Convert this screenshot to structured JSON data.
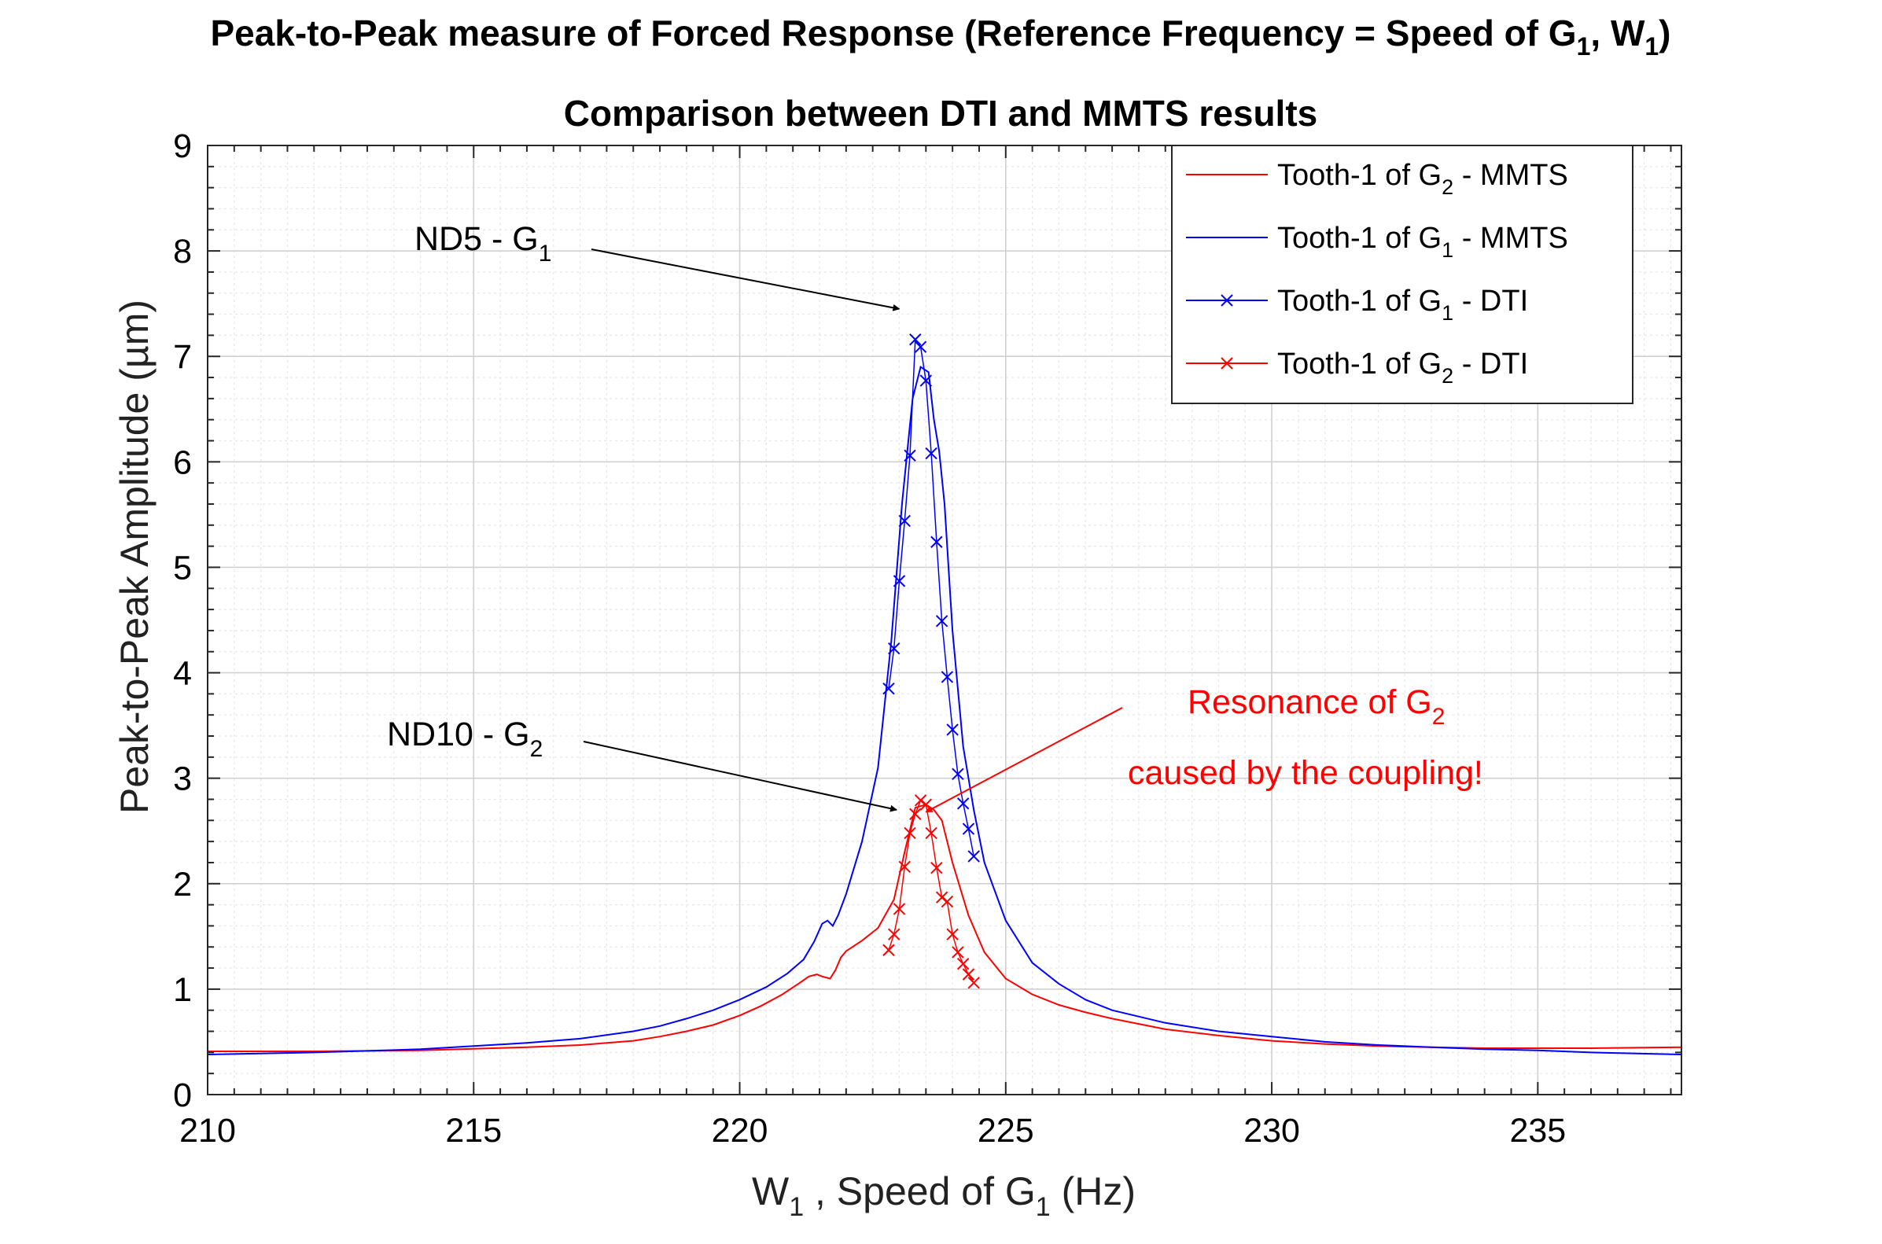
{
  "chart_data": {
    "type": "line",
    "title": {
      "line1_main": "Peak-to-Peak measure of Forced Response (Reference Frequency = Speed of G",
      "line1_sub1": "1",
      "line1_mid": ", W",
      "line1_sub2": "1",
      "line1_end": ")",
      "line2": "Comparison between DTI and MMTS results"
    },
    "xlabel": {
      "a": "W",
      "a_sub": "1",
      "b": " , Speed of G",
      "b_sub": "1",
      "c": " (Hz)"
    },
    "ylabel": "Peak-to-Peak Amplitude (µm)",
    "xlim": [
      210,
      237.7
    ],
    "ylim": [
      0,
      9
    ],
    "xticks": [
      210,
      215,
      220,
      225,
      230,
      235
    ],
    "yticks": [
      0,
      1,
      2,
      3,
      4,
      5,
      6,
      7,
      8,
      9
    ],
    "grid": true,
    "legend_position": "top-right",
    "series": [
      {
        "name": "Tooth-1 of G2 - MMTS",
        "legend": {
          "pre": "Tooth-1 of G",
          "sub": "2",
          "post": " - MMTS"
        },
        "color": "#ff0000",
        "marker": "none",
        "x": [
          210,
          212,
          214,
          216,
          217,
          218,
          218.5,
          219,
          219.5,
          220,
          220.4,
          220.8,
          221.1,
          221.3,
          221.45,
          221.55,
          221.7,
          221.8,
          221.9,
          222,
          222.3,
          222.6,
          222.9,
          223.1,
          223.3,
          223.5,
          223.65,
          223.8,
          224,
          224.3,
          224.6,
          225,
          225.5,
          226,
          226.5,
          227,
          228,
          229,
          230,
          231,
          232,
          233,
          234,
          235,
          236,
          237.7
        ],
        "y": [
          0.41,
          0.41,
          0.42,
          0.45,
          0.47,
          0.51,
          0.55,
          0.6,
          0.66,
          0.75,
          0.84,
          0.95,
          1.05,
          1.12,
          1.14,
          1.12,
          1.1,
          1.18,
          1.3,
          1.36,
          1.46,
          1.58,
          1.85,
          2.3,
          2.72,
          2.75,
          2.7,
          2.6,
          2.2,
          1.7,
          1.35,
          1.1,
          0.95,
          0.85,
          0.78,
          0.72,
          0.62,
          0.56,
          0.51,
          0.48,
          0.46,
          0.45,
          0.44,
          0.44,
          0.44,
          0.45
        ]
      },
      {
        "name": "Tooth-1 of G1 - MMTS",
        "legend": {
          "pre": "Tooth-1 of G",
          "sub": "1",
          "post": " - MMTS"
        },
        "color": "#0000ff",
        "marker": "none",
        "x": [
          210,
          212,
          214,
          216,
          217,
          218,
          218.5,
          219,
          219.5,
          220,
          220.5,
          220.9,
          221.2,
          221.4,
          221.55,
          221.65,
          221.75,
          221.85,
          222,
          222.3,
          222.6,
          222.85,
          223.05,
          223.25,
          223.4,
          223.55,
          223.65,
          223.75,
          223.85,
          224,
          224.2,
          224.4,
          224.6,
          225,
          225.5,
          226,
          226.5,
          227,
          228,
          229,
          230,
          231,
          232,
          233,
          234,
          235,
          236,
          237.7
        ],
        "y": [
          0.38,
          0.4,
          0.43,
          0.49,
          0.53,
          0.6,
          0.65,
          0.72,
          0.8,
          0.9,
          1.02,
          1.15,
          1.28,
          1.45,
          1.62,
          1.65,
          1.6,
          1.7,
          1.9,
          2.4,
          3.1,
          4.3,
          5.6,
          6.6,
          6.9,
          6.85,
          6.4,
          6.1,
          5.6,
          4.4,
          3.3,
          2.7,
          2.2,
          1.65,
          1.25,
          1.05,
          0.9,
          0.8,
          0.68,
          0.6,
          0.55,
          0.5,
          0.47,
          0.45,
          0.43,
          0.42,
          0.4,
          0.38
        ]
      },
      {
        "name": "Tooth-1 of G1 - DTI",
        "legend": {
          "pre": "Tooth-1 of G",
          "sub": "1",
          "post": " - DTI"
        },
        "color": "#0000ff",
        "marker": "x",
        "x": [
          222.8,
          222.9,
          223.0,
          223.1,
          223.2,
          223.3,
          223.4,
          223.5,
          223.6,
          223.7,
          223.8,
          223.9,
          224.0,
          224.1,
          224.2,
          224.3,
          224.4
        ],
        "y": [
          3.85,
          4.23,
          4.87,
          5.44,
          6.06,
          7.16,
          7.09,
          6.77,
          6.08,
          5.24,
          4.49,
          3.96,
          3.46,
          3.04,
          2.76,
          2.52,
          2.26
        ]
      },
      {
        "name": "Tooth-1 of G2 - DTI",
        "legend": {
          "pre": "Tooth-1 of G",
          "sub": "2",
          "post": " - DTI"
        },
        "color": "#ff0000",
        "marker": "x",
        "x": [
          222.8,
          222.9,
          223.0,
          223.1,
          223.2,
          223.3,
          223.4,
          223.5,
          223.6,
          223.7,
          223.8,
          223.9,
          224.0,
          224.1,
          224.2,
          224.3,
          224.4
        ],
        "y": [
          1.37,
          1.52,
          1.76,
          2.16,
          2.48,
          2.66,
          2.79,
          2.75,
          2.48,
          2.15,
          1.87,
          1.83,
          1.52,
          1.35,
          1.24,
          1.14,
          1.06
        ]
      }
    ],
    "annotations": [
      {
        "id": "nd5",
        "pre": "ND5 - G",
        "sub": "1",
        "arrow_to": [
          223.0,
          7.45
        ]
      },
      {
        "id": "nd10",
        "pre": "ND10 - G",
        "sub": "2",
        "arrow_to": [
          222.95,
          2.7
        ]
      },
      {
        "id": "res",
        "line1_pre": "Resonance of G",
        "line1_sub": "2",
        "line2": "caused by the coupling!",
        "arrow_to": [
          223.5,
          2.68
        ]
      }
    ]
  },
  "colors": {
    "red": "#ff0000",
    "blue": "#0000ff",
    "grid": "#d9d9d9",
    "axis": "#262626"
  }
}
